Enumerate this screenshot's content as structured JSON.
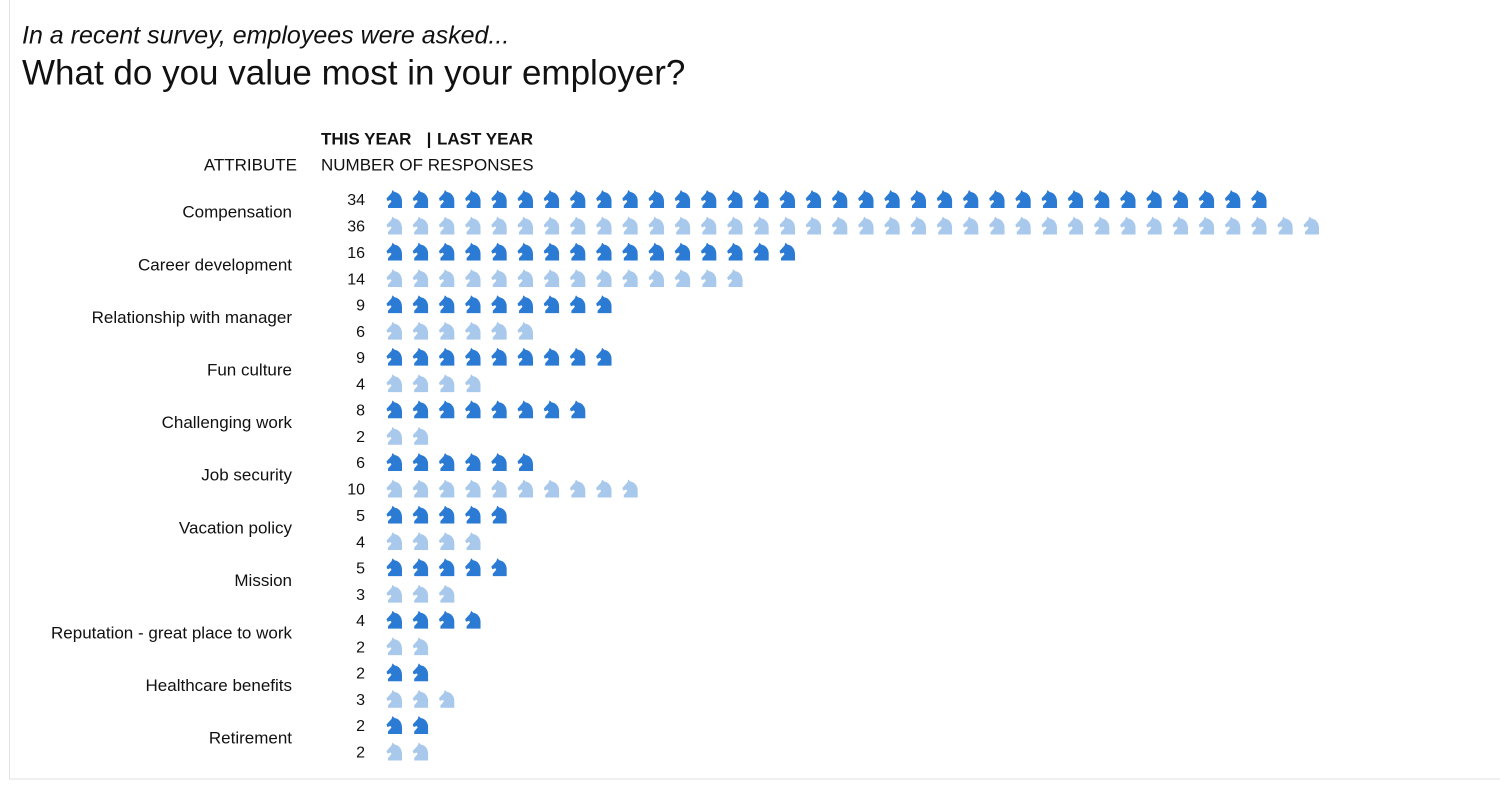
{
  "chart_data": {
    "type": "pictogram",
    "subtitle": "In a recent survey, employees were asked...",
    "title": "What do you value most in your employer?",
    "category_header": "ATTRIBUTE",
    "value_header": "NUMBER OF RESPONSES",
    "legend_separator": "|",
    "categories": [
      "Compensation",
      "Career development",
      "Relationship with manager",
      "Fun culture",
      "Challenging work",
      "Job security",
      "Vacation policy",
      "Mission",
      "Reputation - great place to work",
      "Healthcare benefits",
      "Retirement"
    ],
    "series": [
      {
        "name": "THIS YEAR",
        "color": "#2b7bd4",
        "values": [
          34,
          16,
          9,
          9,
          8,
          6,
          5,
          5,
          4,
          2,
          2
        ]
      },
      {
        "name": "LAST YEAR",
        "color": "#a9c9ec",
        "values": [
          36,
          14,
          6,
          4,
          2,
          10,
          4,
          3,
          2,
          3,
          2
        ]
      }
    ]
  }
}
